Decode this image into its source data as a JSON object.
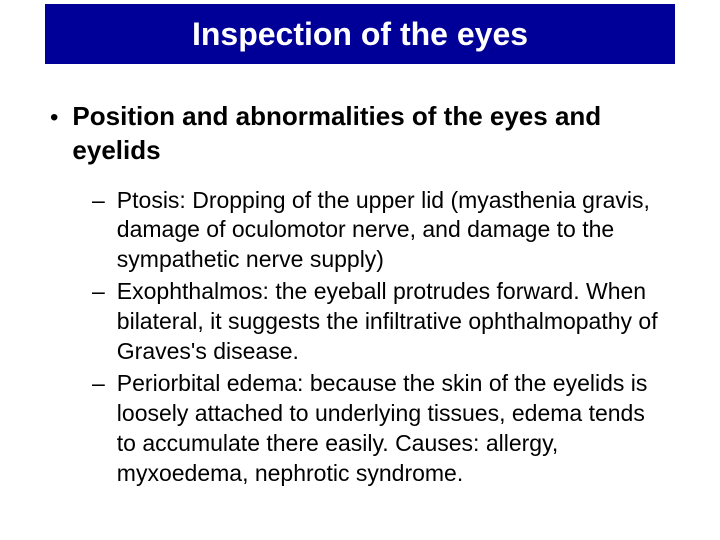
{
  "title": "Inspection of the eyes",
  "main_bullet": "Position and abnormalities of the eyes and eyelids",
  "sub_bullets": [
    "Ptosis: Dropping of the upper lid (myasthenia gravis, damage of oculomotor nerve, and damage to the sympathetic nerve supply)",
    "Exophthalmos: the eyeball protrudes forward. When bilateral, it suggests the infiltrative ophthalmopathy of Graves's disease.",
    "Periorbital edema: because the skin of the eyelids is loosely attached to underlying tissues, edema tends to accumulate there easily. Causes: allergy, myxoedema, nephrotic syndrome."
  ],
  "colors": {
    "title_bar_bg": "#000099",
    "title_text": "#ffffff",
    "body_bg": "#ffffff",
    "text": "#000000"
  }
}
